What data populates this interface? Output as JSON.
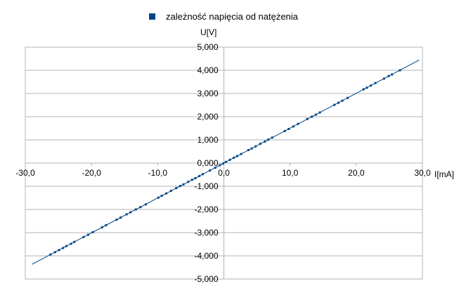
{
  "chart_data": {
    "type": "scatter",
    "title": "",
    "legend": {
      "label": "zależność napięcia od natężenia",
      "placement": "top-center"
    },
    "xlabel": "I[mA]",
    "ylabel": "U[V]",
    "xlim": [
      -30,
      30
    ],
    "ylim": [
      -5,
      5
    ],
    "x_ticks": [
      -30,
      -20,
      -10,
      0,
      10,
      20,
      30
    ],
    "x_tick_labels": [
      "-30,0",
      "-20,0",
      "-10,0",
      "0,0",
      "10,0",
      "20,0",
      "30,0"
    ],
    "y_ticks": [
      5,
      4,
      3,
      2,
      1,
      0,
      -1,
      -2,
      -3,
      -4,
      -5
    ],
    "y_tick_labels": [
      "5,000",
      "4,000",
      "3,000",
      "2,000",
      "1,000",
      "0,000",
      "-1,000",
      "-2,000",
      "-3,000",
      "-4,000",
      "-5,000"
    ],
    "grid": {
      "horizontal": true,
      "vertical": false
    },
    "colors": {
      "series": "#004586",
      "grid": "#b3b3b3",
      "axis": "#b3b3b3"
    },
    "trendline": {
      "type": "linear",
      "slope": 0.1505,
      "intercept": 0.0,
      "x_range": [
        -29,
        29.5
      ]
    },
    "series": [
      {
        "name": "zależność napięcia od natężenia",
        "x": [
          -26.2,
          -25.5,
          -24.9,
          -24.3,
          -23.8,
          -23.1,
          -22.6,
          -21.2,
          -20.5,
          -19.8,
          -18.4,
          -17.8,
          -16.2,
          -15.6,
          -14.7,
          -14.1,
          -13.3,
          -12.6,
          -11.8,
          -9.9,
          -9.4,
          -8.7,
          -8.0,
          -7.2,
          -6.6,
          -6.1,
          -5.4,
          -4.8,
          -4.3,
          -3.7,
          -3.2,
          -2.1,
          -1.3,
          -0.6,
          -0.1,
          0.3,
          0.9,
          1.5,
          2.0,
          2.6,
          3.7,
          4.2,
          4.8,
          5.5,
          6.2,
          6.7,
          7.3,
          9.2,
          9.8,
          10.5,
          11.2,
          12.6,
          13.3,
          13.9,
          14.5,
          16.7,
          17.3,
          17.9,
          18.7,
          21.1,
          21.6,
          22.2,
          22.9,
          24.2,
          24.9,
          25.4,
          26.6
        ],
        "y": [
          -3.94,
          -3.84,
          -3.75,
          -3.66,
          -3.58,
          -3.48,
          -3.4,
          -3.19,
          -3.09,
          -2.98,
          -2.77,
          -2.68,
          -2.44,
          -2.35,
          -2.21,
          -2.12,
          -2.0,
          -1.9,
          -1.78,
          -1.49,
          -1.41,
          -1.31,
          -1.2,
          -1.08,
          -0.99,
          -0.92,
          -0.81,
          -0.72,
          -0.65,
          -0.56,
          -0.48,
          -0.32,
          -0.2,
          -0.09,
          -0.02,
          0.05,
          0.14,
          0.23,
          0.3,
          0.39,
          0.56,
          0.63,
          0.72,
          0.83,
          0.93,
          1.01,
          1.1,
          1.38,
          1.47,
          1.58,
          1.69,
          1.9,
          2.0,
          2.09,
          2.18,
          2.51,
          2.6,
          2.69,
          2.81,
          3.18,
          3.25,
          3.34,
          3.45,
          3.64,
          3.75,
          3.82,
          4.0
        ]
      }
    ]
  }
}
